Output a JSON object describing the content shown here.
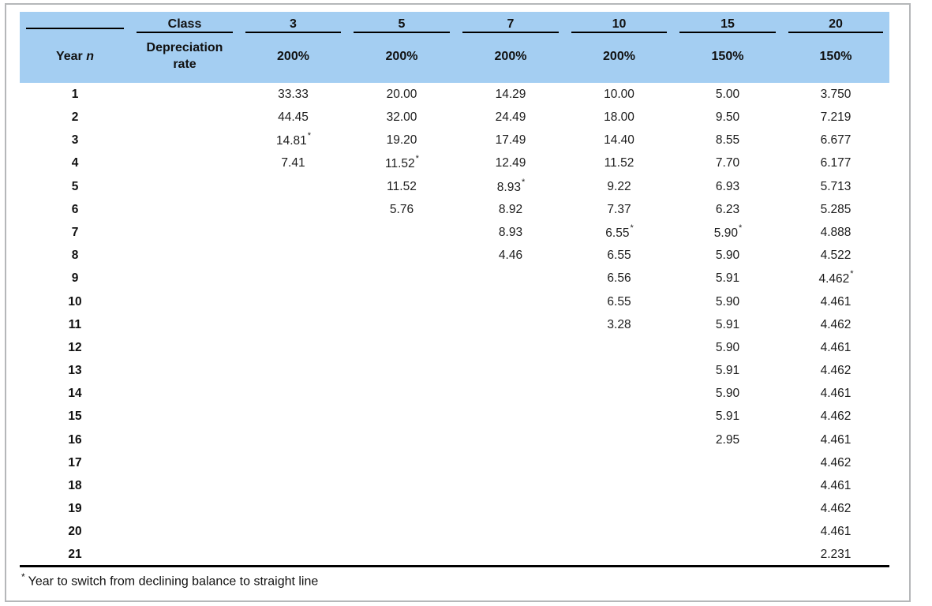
{
  "colors": {
    "header_bg": "#a4cef2",
    "rule_color": "#000000",
    "frame_border": "#b5b7b9",
    "text": "#1c1c1c"
  },
  "table": {
    "corner_label": "",
    "class_label": "Class",
    "classes": [
      "3",
      "5",
      "7",
      "10",
      "15",
      "20"
    ],
    "year_label": "Year",
    "year_symbol": "n",
    "rate_label": "Depreciation rate",
    "rates": [
      "200%",
      "200%",
      "200%",
      "200%",
      "150%",
      "150%"
    ],
    "rows": [
      {
        "year": "1",
        "cells": [
          "33.33",
          "20.00",
          "14.29",
          "10.00",
          "5.00",
          "3.750"
        ]
      },
      {
        "year": "2",
        "cells": [
          "44.45",
          "32.00",
          "24.49",
          "18.00",
          "9.50",
          "7.219"
        ]
      },
      {
        "year": "3",
        "cells": [
          "14.81*",
          "19.20",
          "17.49",
          "14.40",
          "8.55",
          "6.677"
        ]
      },
      {
        "year": "4",
        "cells": [
          "7.41",
          "11.52*",
          "12.49",
          "11.52",
          "7.70",
          "6.177"
        ]
      },
      {
        "year": "5",
        "cells": [
          "",
          "11.52",
          "8.93*",
          "9.22",
          "6.93",
          "5.713"
        ]
      },
      {
        "year": "6",
        "cells": [
          "",
          "5.76",
          "8.92",
          "7.37",
          "6.23",
          "5.285"
        ]
      },
      {
        "year": "7",
        "cells": [
          "",
          "",
          "8.93",
          "6.55*",
          "5.90*",
          "4.888"
        ]
      },
      {
        "year": "8",
        "cells": [
          "",
          "",
          "4.46",
          "6.55",
          "5.90",
          "4.522"
        ]
      },
      {
        "year": "9",
        "cells": [
          "",
          "",
          "",
          "6.56",
          "5.91",
          "4.462*"
        ]
      },
      {
        "year": "10",
        "cells": [
          "",
          "",
          "",
          "6.55",
          "5.90",
          "4.461"
        ]
      },
      {
        "year": "11",
        "cells": [
          "",
          "",
          "",
          "3.28",
          "5.91",
          "4.462"
        ]
      },
      {
        "year": "12",
        "cells": [
          "",
          "",
          "",
          "",
          "5.90",
          "4.461"
        ]
      },
      {
        "year": "13",
        "cells": [
          "",
          "",
          "",
          "",
          "5.91",
          "4.462"
        ]
      },
      {
        "year": "14",
        "cells": [
          "",
          "",
          "",
          "",
          "5.90",
          "4.461"
        ]
      },
      {
        "year": "15",
        "cells": [
          "",
          "",
          "",
          "",
          "5.91",
          "4.462"
        ]
      },
      {
        "year": "16",
        "cells": [
          "",
          "",
          "",
          "",
          "2.95",
          "4.461"
        ]
      },
      {
        "year": "17",
        "cells": [
          "",
          "",
          "",
          "",
          "",
          "4.462"
        ]
      },
      {
        "year": "18",
        "cells": [
          "",
          "",
          "",
          "",
          "",
          "4.461"
        ]
      },
      {
        "year": "19",
        "cells": [
          "",
          "",
          "",
          "",
          "",
          "4.462"
        ]
      },
      {
        "year": "20",
        "cells": [
          "",
          "",
          "",
          "",
          "",
          "4.461"
        ]
      },
      {
        "year": "21",
        "cells": [
          "",
          "",
          "",
          "",
          "",
          "2.231"
        ]
      }
    ],
    "footnote_marker": "*",
    "footnote_text": "Year to switch from declining balance to straight line"
  }
}
